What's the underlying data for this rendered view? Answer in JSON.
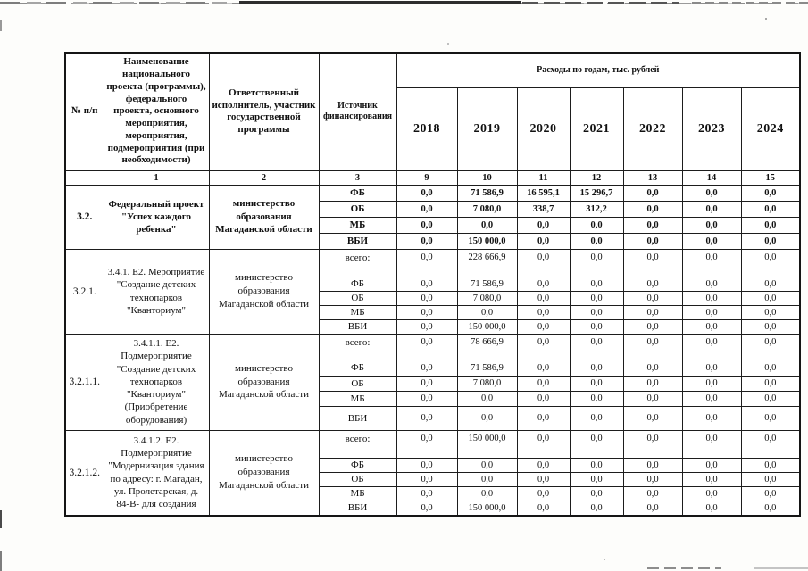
{
  "table": {
    "header": {
      "col_num": "№ п/п",
      "col_name": "Наименование национального проекта (программы), федерального проекта, основного мероприятия, мероприятия, подмероприятия (при необходимости)",
      "col_executor": "Ответственный исполнитель, участник государственной программы",
      "col_source": "Источник финансирования",
      "expenses_title": "Расходы по годам, тыс. рублей",
      "years": [
        "2018",
        "2019",
        "2020",
        "2021",
        "2022",
        "2023",
        "2024"
      ],
      "column_numbers": [
        "",
        "1",
        "2",
        "3",
        "9",
        "10",
        "11",
        "12",
        "13",
        "14",
        "15"
      ]
    },
    "rows": [
      {
        "num": "3.2.",
        "name": "Федеральный проект \"Успех каждого ребенка\"",
        "executor": "министерство образования Магаданской области",
        "bold": true,
        "sources": [
          {
            "label": "ФБ",
            "values": [
              "0,0",
              "71 586,9",
              "16 595,1",
              "15 296,7",
              "0,0",
              "0,0",
              "0,0"
            ]
          },
          {
            "label": "ОБ",
            "values": [
              "0,0",
              "7 080,0",
              "338,7",
              "312,2",
              "0,0",
              "0,0",
              "0,0"
            ]
          },
          {
            "label": "МБ",
            "values": [
              "0,0",
              "0,0",
              "0,0",
              "0,0",
              "0,0",
              "0,0",
              "0,0"
            ]
          },
          {
            "label": "ВБИ",
            "values": [
              "0,0",
              "150 000,0",
              "0,0",
              "0,0",
              "0,0",
              "0,0",
              "0,0"
            ]
          }
        ]
      },
      {
        "num": "3.2.1.",
        "name": "3.4.1. Е2. Мероприятие \"Создание детских технопарков \"Кванториум\"",
        "executor": "министерство образования Магаданской области",
        "bold": false,
        "sources": [
          {
            "label": "всего:",
            "values": [
              "0,0",
              "228 666,9",
              "0,0",
              "0,0",
              "0,0",
              "0,0",
              "0,0"
            ]
          },
          {
            "label": "ФБ",
            "values": [
              "0,0",
              "71 586,9",
              "0,0",
              "0,0",
              "0,0",
              "0,0",
              "0,0"
            ]
          },
          {
            "label": "ОБ",
            "values": [
              "0,0",
              "7 080,0",
              "0,0",
              "0,0",
              "0,0",
              "0,0",
              "0,0"
            ]
          },
          {
            "label": "МБ",
            "values": [
              "0,0",
              "0,0",
              "0,0",
              "0,0",
              "0,0",
              "0,0",
              "0,0"
            ]
          },
          {
            "label": "ВБИ",
            "values": [
              "0,0",
              "150 000,0",
              "0,0",
              "0,0",
              "0,0",
              "0,0",
              "0,0"
            ]
          }
        ]
      },
      {
        "num": "3.2.1.1.",
        "name": "3.4.1.1. Е2. Подмероприятие \"Создание детских технопарков \"Кванториум\" (Приобретение оборудования)",
        "executor": "министерство образования Магаданской области",
        "bold": false,
        "sources": [
          {
            "label": "всего:",
            "values": [
              "0,0",
              "78 666,9",
              "0,0",
              "0,0",
              "0,0",
              "0,0",
              "0,0"
            ]
          },
          {
            "label": "ФБ",
            "values": [
              "0,0",
              "71 586,9",
              "0,0",
              "0,0",
              "0,0",
              "0,0",
              "0,0"
            ]
          },
          {
            "label": "ОБ",
            "values": [
              "0,0",
              "7 080,0",
              "0,0",
              "0,0",
              "0,0",
              "0,0",
              "0,0"
            ]
          },
          {
            "label": "МБ",
            "values": [
              "0,0",
              "0,0",
              "0,0",
              "0,0",
              "0,0",
              "0,0",
              "0,0"
            ]
          },
          {
            "label": "ВБИ",
            "values": [
              "0,0",
              "0,0",
              "0,0",
              "0,0",
              "0,0",
              "0,0",
              "0,0"
            ]
          }
        ]
      },
      {
        "num": "3.2.1.2.",
        "name": "3.4.1.2. Е2. Подмероприятие \"Модернизация здания по адресу: г. Магадан, ул. Пролетарская, д. 84-В- для создания",
        "executor": "министерство образования Магаданской области",
        "bold": false,
        "sources": [
          {
            "label": "всего:",
            "values": [
              "0,0",
              "150 000,0",
              "0,0",
              "0,0",
              "0,0",
              "0,0",
              "0,0"
            ]
          },
          {
            "label": "ФБ",
            "values": [
              "0,0",
              "0,0",
              "0,0",
              "0,0",
              "0,0",
              "0,0",
              "0,0"
            ]
          },
          {
            "label": "ОБ",
            "values": [
              "0,0",
              "0,0",
              "0,0",
              "0,0",
              "0,0",
              "0,0",
              "0,0"
            ]
          },
          {
            "label": "МБ",
            "values": [
              "0,0",
              "0,0",
              "0,0",
              "0,0",
              "0,0",
              "0,0",
              "0,0"
            ]
          },
          {
            "label": "ВБИ",
            "values": [
              "0,0",
              "150 000,0",
              "0,0",
              "0,0",
              "0,0",
              "0,0",
              "0,0"
            ]
          }
        ]
      }
    ]
  }
}
